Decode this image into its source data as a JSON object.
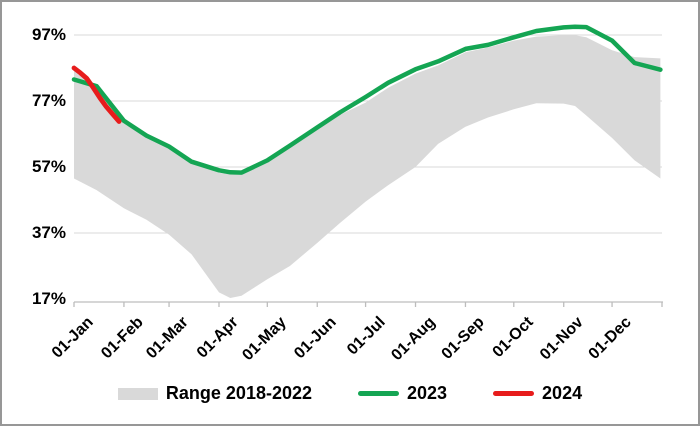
{
  "y_axis": {
    "tick_values": [
      97,
      77,
      57,
      37,
      17
    ],
    "tick_labels": [
      "97%",
      "77%",
      "57%",
      "37%",
      "17%"
    ]
  },
  "x_axis": {
    "tick_days": [
      1,
      32,
      60,
      91,
      121,
      152,
      182,
      213,
      244,
      274,
      305,
      335
    ],
    "tick_labels": [
      "01-Jan",
      "01-Feb",
      "01-Mar",
      "01-Apr",
      "01-May",
      "01-Jun",
      "01-Jul",
      "01-Aug",
      "01-Sep",
      "01-Oct",
      "01-Nov",
      "01-Dec"
    ],
    "end_tick_day": 366
  },
  "legend": {
    "items": [
      {
        "label": "Range 2018-2022",
        "type": "band",
        "color": "#d9d9d9"
      },
      {
        "label": "2023",
        "type": "line",
        "color": "#14a553"
      },
      {
        "label": "2024",
        "type": "line",
        "color": "#e71c1c"
      }
    ]
  },
  "chart_data": {
    "type": "line",
    "title": "",
    "xlabel": "",
    "ylabel": "",
    "x_unit": "day-of-year",
    "ylim": [
      16,
      101
    ],
    "grid": "horizontal",
    "grid_color": "#d9d9d9",
    "axis_color": "#bdbdbd",
    "legend_position": "bottom",
    "y_tick_labels": [
      "97%",
      "77%",
      "57%",
      "37%",
      "17%"
    ],
    "x_tick_labels": [
      "01-Jan",
      "01-Feb",
      "01-Mar",
      "01-Apr",
      "01-May",
      "01-Jun",
      "01-Jul",
      "01-Aug",
      "01-Sep",
      "01-Oct",
      "01-Nov",
      "01-Dec"
    ],
    "band": {
      "name": "Range 2018-2022",
      "color": "#d9d9d9",
      "x": [
        1,
        15,
        32,
        46,
        60,
        74,
        91,
        98,
        105,
        121,
        135,
        152,
        166,
        182,
        196,
        213,
        227,
        244,
        258,
        274,
        288,
        305,
        312,
        319,
        335,
        349,
        365
      ],
      "upper": [
        88.0,
        80.8,
        70.2,
        66.0,
        62.6,
        58.2,
        55.2,
        54.8,
        54.6,
        58.3,
        62.8,
        68.3,
        72.8,
        76.5,
        81.0,
        85.3,
        87.8,
        91.8,
        93.2,
        95.3,
        96.5,
        96.9,
        96.9,
        96.3,
        92.4,
        90.3,
        89.9
      ],
      "lower": [
        53.5,
        50.0,
        44.5,
        41.0,
        36.5,
        30.5,
        19.0,
        17.3,
        18.0,
        23.0,
        27.0,
        34.0,
        40.0,
        46.5,
        51.5,
        57.0,
        64.0,
        69.2,
        72.0,
        74.5,
        76.3,
        76.2,
        75.5,
        72.6,
        65.8,
        59.0,
        53.5
      ]
    },
    "series": [
      {
        "name": "2023",
        "color": "#14a553",
        "stroke_width": 4.5,
        "x": [
          1,
          15,
          32,
          46,
          60,
          74,
          91,
          98,
          105,
          121,
          135,
          152,
          166,
          182,
          196,
          213,
          227,
          244,
          258,
          274,
          288,
          305,
          312,
          319,
          335,
          349,
          365
        ],
        "values": [
          83.5,
          81.5,
          71.0,
          66.5,
          63.2,
          58.6,
          56.0,
          55.4,
          55.3,
          59.0,
          63.5,
          69.0,
          73.5,
          78.2,
          82.5,
          86.6,
          89.0,
          92.8,
          94.0,
          96.3,
          98.2,
          99.3,
          99.5,
          99.4,
          95.3,
          88.5,
          86.5
        ]
      },
      {
        "name": "2024",
        "color": "#e71c1c",
        "stroke_width": 4.8,
        "x": [
          1,
          5,
          9,
          13,
          17,
          21,
          25,
          29
        ],
        "values": [
          87.0,
          85.5,
          83.8,
          81.0,
          78.0,
          75.3,
          73.0,
          70.8
        ]
      }
    ]
  }
}
